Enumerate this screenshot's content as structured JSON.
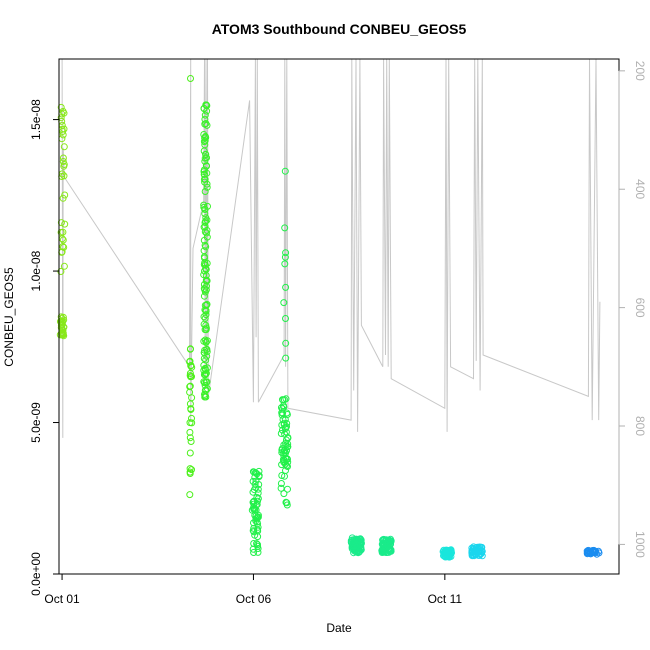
{
  "chart_data": {
    "type": "scatter",
    "title": "ATOM3 Southbound CONBEU_GEOS5",
    "xlabel": "Date",
    "ylabel": "CONBEU_GEOS5",
    "x_unit": "day of October",
    "xlim": [
      0.92,
      15.55
    ],
    "ylim": [
      0,
      1.7e-08
    ],
    "y2lim_reversed": [
      180,
      1050
    ],
    "x_ticks": [
      {
        "value": 1,
        "label": "Oct 01"
      },
      {
        "value": 6,
        "label": "Oct 06"
      },
      {
        "value": 11,
        "label": "Oct 11"
      }
    ],
    "y_ticks": [
      {
        "value": 0,
        "label": "0.0e+00"
      },
      {
        "value": 5e-09,
        "label": "5.0e-09"
      },
      {
        "value": 1e-08,
        "label": "1.0e-08"
      },
      {
        "value": 1.5e-08,
        "label": "1.5e-08"
      }
    ],
    "y2_ticks": [
      {
        "value": 200,
        "label": "200"
      },
      {
        "value": 400,
        "label": "400"
      },
      {
        "value": 600,
        "label": "600"
      },
      {
        "value": 800,
        "label": "800"
      },
      {
        "value": 1000,
        "label": "1000"
      }
    ],
    "grid": false,
    "legend": "none",
    "colors": {
      "axis": "#000000",
      "right_axis": "#b0b0b0",
      "track": "#c8c8c8"
    },
    "point_clusters": [
      {
        "x_range": [
          0.95,
          1.05
        ],
        "y_range": [
          7.8e-09,
          8.5e-09
        ],
        "n": 28,
        "color": "#88e81a"
      },
      {
        "x_range": [
          0.97,
          1.07
        ],
        "y_range": [
          9.5e-09,
          1.55e-08
        ],
        "n": 34,
        "color": "#88e81a"
      },
      {
        "x_range": [
          4.33,
          4.39
        ],
        "y_range": [
          2.6e-09,
          7.5e-09
        ],
        "n": 30,
        "color": "#4cf01a"
      },
      {
        "x_range": [
          4.35,
          4.37
        ],
        "y_range": [
          1.63e-08,
          1.64e-08
        ],
        "n": 1,
        "color": "#4cf01a"
      },
      {
        "x_range": [
          4.7,
          4.8
        ],
        "y_range": [
          5.8e-09,
          1.56e-08
        ],
        "n": 130,
        "color": "#3bf02a"
      },
      {
        "x_range": [
          5.97,
          6.15
        ],
        "y_range": [
          7e-10,
          3.5e-09
        ],
        "n": 60,
        "color": "#22f04a"
      },
      {
        "x_range": [
          6.72,
          6.9
        ],
        "y_range": [
          2.2e-09,
          5.8e-09
        ],
        "n": 70,
        "color": "#22f04a"
      },
      {
        "x_range": [
          6.79,
          6.85
        ],
        "y_range": [
          6.6e-09,
          1.35e-08
        ],
        "n": 10,
        "color": "#22f04a"
      },
      {
        "x_range": [
          8.55,
          8.82
        ],
        "y_range": [
          7e-10,
          1.2e-09
        ],
        "n": 70,
        "color": "#1aeb8a"
      },
      {
        "x_range": [
          9.35,
          9.6
        ],
        "y_range": [
          7e-10,
          1.15e-09
        ],
        "n": 60,
        "color": "#1aeb8a"
      },
      {
        "x_range": [
          10.95,
          11.18
        ],
        "y_range": [
          5.5e-10,
          8e-10
        ],
        "n": 45,
        "color": "#1ae6dc"
      },
      {
        "x_range": [
          11.7,
          11.98
        ],
        "y_range": [
          6e-10,
          9e-10
        ],
        "n": 45,
        "color": "#1ad6ee"
      },
      {
        "x_range": [
          14.7,
          15.05
        ],
        "y_range": [
          6.5e-10,
          7.8e-10
        ],
        "n": 30,
        "color": "#1a8cf0"
      }
    ],
    "pressure_track": [
      [
        1.0,
        180
      ],
      [
        1.02,
        820
      ],
      [
        1.03,
        330
      ],
      [
        1.06,
        380
      ],
      [
        4.33,
        700
      ],
      [
        4.36,
        180
      ],
      [
        4.36,
        790
      ],
      [
        4.42,
        500
      ],
      [
        4.7,
        420
      ],
      [
        4.72,
        180
      ],
      [
        4.74,
        720
      ],
      [
        4.76,
        180
      ],
      [
        4.78,
        700
      ],
      [
        4.8,
        180
      ],
      [
        4.82,
        750
      ],
      [
        5.9,
        250
      ],
      [
        6.0,
        760
      ],
      [
        6.05,
        180
      ],
      [
        6.07,
        650
      ],
      [
        6.1,
        180
      ],
      [
        6.13,
        760
      ],
      [
        6.8,
        680
      ],
      [
        6.82,
        180
      ],
      [
        6.84,
        700
      ],
      [
        6.87,
        180
      ],
      [
        6.9,
        770
      ],
      [
        8.55,
        790
      ],
      [
        8.57,
        180
      ],
      [
        8.62,
        740
      ],
      [
        8.68,
        180
      ],
      [
        8.72,
        810
      ],
      [
        8.78,
        180
      ],
      [
        8.82,
        630
      ],
      [
        9.38,
        700
      ],
      [
        9.4,
        180
      ],
      [
        9.45,
        680
      ],
      [
        9.48,
        180
      ],
      [
        9.52,
        700
      ],
      [
        9.55,
        180
      ],
      [
        9.6,
        720
      ],
      [
        11.0,
        770
      ],
      [
        11.03,
        180
      ],
      [
        11.06,
        810
      ],
      [
        11.1,
        180
      ],
      [
        11.15,
        700
      ],
      [
        11.75,
        720
      ],
      [
        11.78,
        180
      ],
      [
        11.82,
        690
      ],
      [
        11.86,
        180
      ],
      [
        11.92,
        740
      ],
      [
        11.98,
        180
      ],
      [
        12.0,
        680
      ],
      [
        14.75,
        750
      ],
      [
        14.78,
        180
      ],
      [
        14.85,
        790
      ],
      [
        14.95,
        180
      ],
      [
        15.02,
        790
      ],
      [
        15.05,
        590
      ]
    ]
  }
}
